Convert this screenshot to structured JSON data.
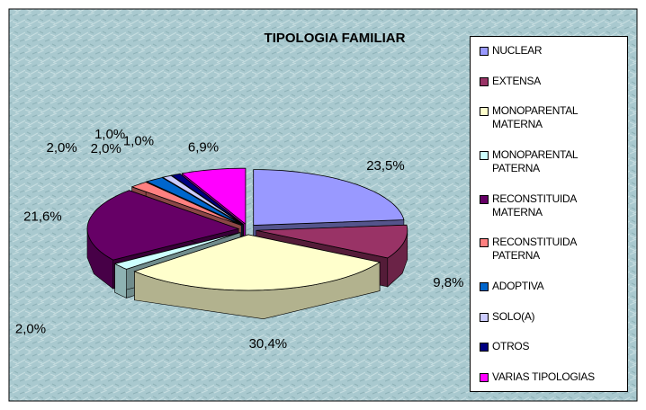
{
  "chart_data": {
    "type": "pie",
    "title": "TIPOLOGIA FAMILIAR",
    "categories": [
      "NUCLEAR",
      "EXTENSA",
      "MONOPARENTAL MATERNA",
      "MONOPARENTAL PATERNA",
      "RECONSTITUIDA MATERNA",
      "RECONSTITUIDA PATERNA",
      "ADOPTIVA",
      "SOLO(A)",
      "OTROS",
      "VARIAS TIPOLOGIAS"
    ],
    "values": [
      23.5,
      9.8,
      30.4,
      2.0,
      21.6,
      2.0,
      2.0,
      1.0,
      1.0,
      6.9
    ],
    "value_labels": [
      "23,5%",
      "9,8%",
      "30,4%",
      "2,0%",
      "21,6%",
      "2,0%",
      "2,0%",
      "1,0%",
      "1,0%",
      "6,9%"
    ],
    "colors": [
      "#9999ff",
      "#993366",
      "#ffffcc",
      "#ccffff",
      "#660066",
      "#ff8080",
      "#0066cc",
      "#ccccff",
      "#000080",
      "#ff00ff"
    ],
    "legend": "right"
  }
}
